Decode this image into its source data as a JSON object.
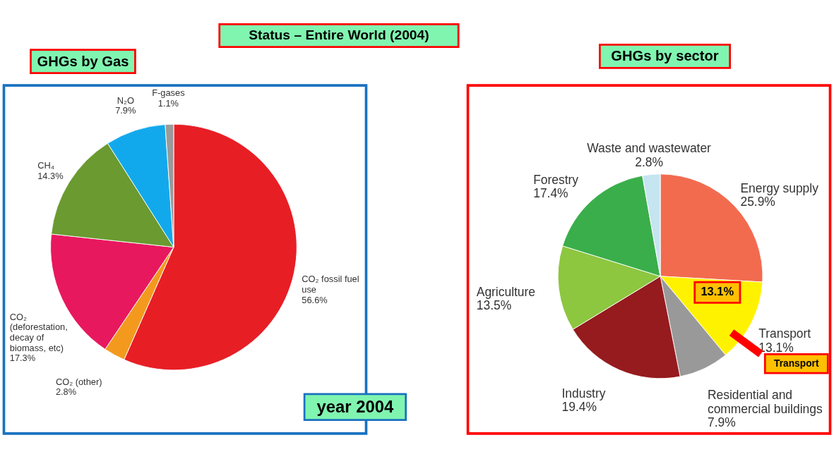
{
  "chart_data": [
    {
      "type": "pie",
      "title": "GHGs by Gas",
      "categories": [
        "CO₂ fossil fuel use",
        "CO₂ (other)",
        "CO₂ (deforestation, decay of biomass, etc)",
        "CH₄",
        "N₂O",
        "F-gases"
      ],
      "values": [
        56.6,
        2.8,
        17.3,
        14.3,
        7.9,
        1.1
      ],
      "value_labels": [
        "56.6%",
        "2.8%",
        "17.3%",
        "14.3%",
        "7.9%",
        "1.1%"
      ],
      "colors": [
        "#e81e25",
        "#f39a1e",
        "#e8185e",
        "#6a9a30",
        "#12a9ec",
        "#9a9a9a"
      ],
      "legend": false,
      "annotations": [
        "Status – Entire World (2004)",
        "year 2004"
      ]
    },
    {
      "type": "pie",
      "title": "GHGs by sector",
      "categories": [
        "Energy supply",
        "Transport",
        "Residential and commercial buildings",
        "Industry",
        "Agriculture",
        "Forestry",
        "Waste and wastewater"
      ],
      "values": [
        25.9,
        13.1,
        7.9,
        19.4,
        13.5,
        17.4,
        2.8
      ],
      "value_labels": [
        "25.9%",
        "13.1%",
        "7.9%",
        "19.4%",
        "13.5%",
        "17.4%",
        "2.8%"
      ],
      "colors": [
        "#f26b4f",
        "#fff200",
        "#999999",
        "#951b1e",
        "#8dc63f",
        "#3aae4a",
        "#c5e5f0"
      ],
      "legend": false,
      "annotations": [
        "13.1%",
        "Transport"
      ]
    }
  ]
}
